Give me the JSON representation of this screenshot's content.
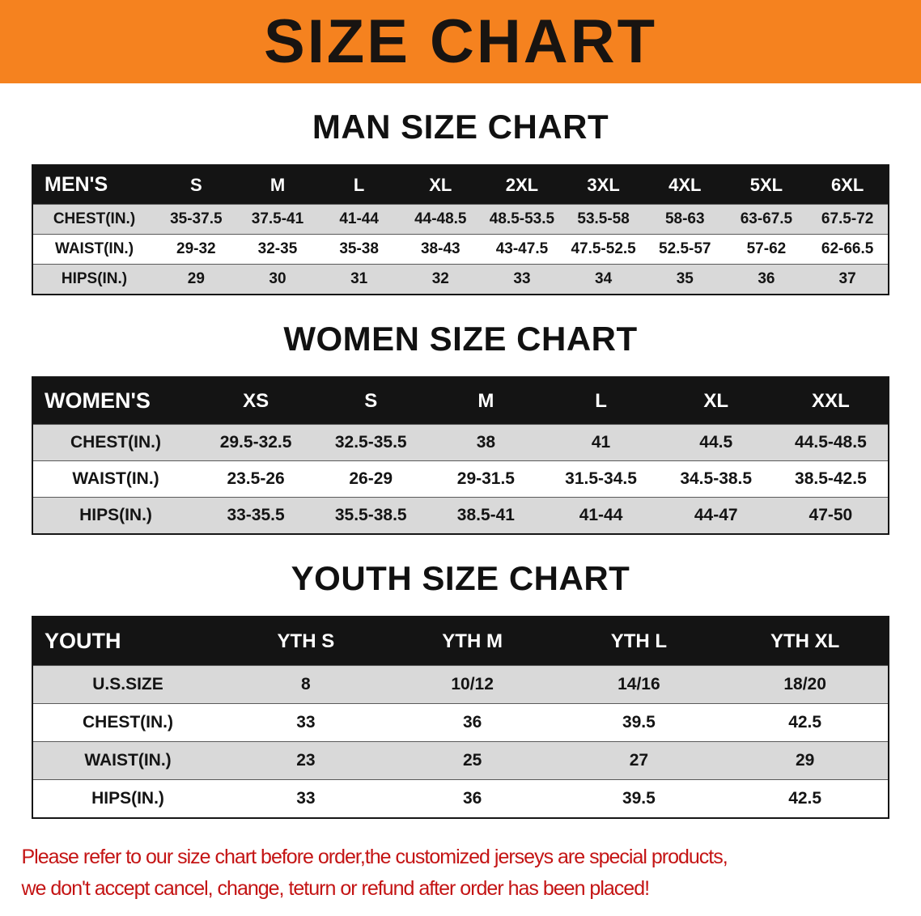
{
  "banner": {
    "title": "SIZE CHART"
  },
  "colors": {
    "banner_bg": "#f5821f",
    "table_header_bg": "#141414",
    "row_shade": "#d9d9d9",
    "disclaimer_text": "#c41414"
  },
  "sections": [
    {
      "title": "MAN SIZE CHART",
      "table": {
        "header": [
          "MEN'S",
          "S",
          "M",
          "L",
          "XL",
          "2XL",
          "3XL",
          "4XL",
          "5XL",
          "6XL"
        ],
        "rows": [
          [
            "CHEST(IN.)",
            "35-37.5",
            "37.5-41",
            "41-44",
            "44-48.5",
            "48.5-53.5",
            "53.5-58",
            "58-63",
            "63-67.5",
            "67.5-72"
          ],
          [
            "WAIST(IN.)",
            "29-32",
            "32-35",
            "35-38",
            "38-43",
            "43-47.5",
            "47.5-52.5",
            "52.5-57",
            "57-62",
            "62-66.5"
          ],
          [
            "HIPS(IN.)",
            "29",
            "30",
            "31",
            "32",
            "33",
            "34",
            "35",
            "36",
            "37"
          ]
        ]
      }
    },
    {
      "title": "WOMEN SIZE CHART",
      "table": {
        "header": [
          "WOMEN'S",
          "XS",
          "S",
          "M",
          "L",
          "XL",
          "XXL"
        ],
        "rows": [
          [
            "CHEST(IN.)",
            "29.5-32.5",
            "32.5-35.5",
            "38",
            "41",
            "44.5",
            "44.5-48.5"
          ],
          [
            "WAIST(IN.)",
            "23.5-26",
            "26-29",
            "29-31.5",
            "31.5-34.5",
            "34.5-38.5",
            "38.5-42.5"
          ],
          [
            "HIPS(IN.)",
            "33-35.5",
            "35.5-38.5",
            "38.5-41",
            "41-44",
            "44-47",
            "47-50"
          ]
        ]
      }
    },
    {
      "title": "YOUTH SIZE CHART",
      "table": {
        "header": [
          "YOUTH",
          "YTH S",
          "YTH M",
          "YTH L",
          "YTH XL"
        ],
        "rows": [
          [
            "U.S.SIZE",
            "8",
            "10/12",
            "14/16",
            "18/20"
          ],
          [
            "CHEST(IN.)",
            "33",
            "36",
            "39.5",
            "42.5"
          ],
          [
            "WAIST(IN.)",
            "23",
            "25",
            "27",
            "29"
          ],
          [
            "HIPS(IN.)",
            "33",
            "36",
            "39.5",
            "42.5"
          ]
        ]
      }
    }
  ],
  "disclaimer": {
    "line1": "Please refer to our size chart before order,the customized jerseys are special products,",
    "line2": "we don't accept cancel, change, teturn or refund after order has been placed!"
  }
}
